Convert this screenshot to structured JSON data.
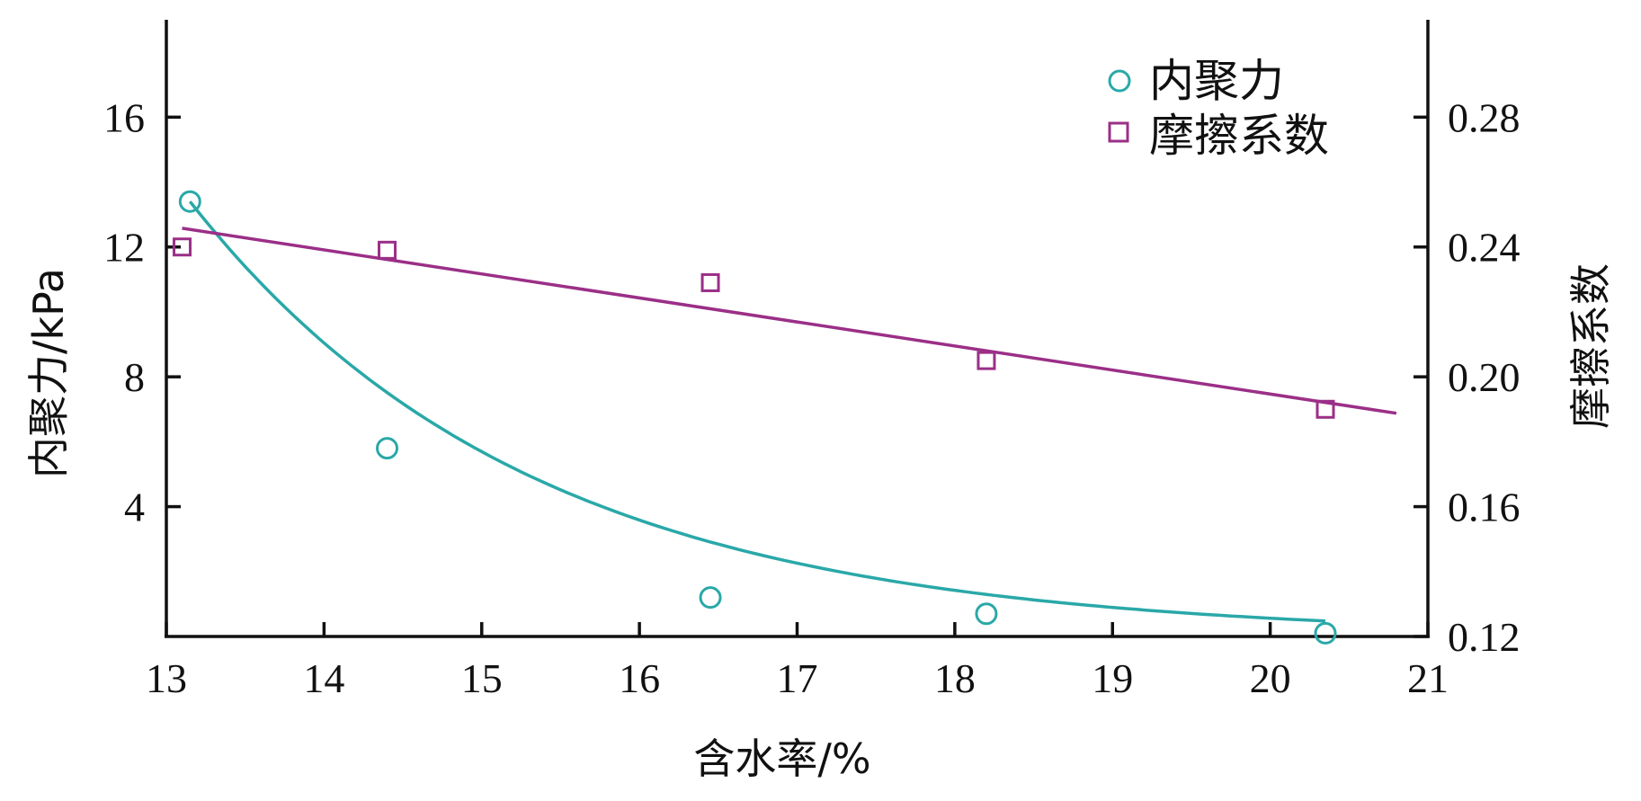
{
  "chart_data": {
    "type": "scatter",
    "title": "",
    "xlabel": "含水率/%",
    "ylabel_left": "内聚力/kPa",
    "ylabel_right": "摩擦系数",
    "xlim": [
      13,
      21
    ],
    "ylim_left": [
      0,
      19
    ],
    "ylim_right": [
      0.12,
      0.31
    ],
    "x_ticks": [
      13,
      14,
      15,
      16,
      17,
      18,
      19,
      20,
      21
    ],
    "y_left_ticks": [
      4,
      8,
      12,
      16
    ],
    "y_right_ticks": [
      "0.12",
      "0.16",
      "0.20",
      "0.24",
      "0.28"
    ],
    "grid": false,
    "legend_position": "top-right",
    "series": [
      {
        "name": "内聚力",
        "axis": "left",
        "marker": "circle",
        "color": "#2aa8a8",
        "x": [
          13.15,
          14.4,
          16.45,
          18.2,
          20.35
        ],
        "y": [
          13.4,
          5.8,
          1.2,
          0.7,
          0.1
        ],
        "fit": "exponential"
      },
      {
        "name": "摩擦系数",
        "axis": "right",
        "marker": "square",
        "color": "#9b2f87",
        "x": [
          13.1,
          14.4,
          16.45,
          18.2,
          20.35
        ],
        "y": [
          0.24,
          0.239,
          0.229,
          0.205,
          0.19
        ],
        "fit": "linear",
        "fit_range": [
          13.1,
          20.8
        ]
      }
    ]
  }
}
